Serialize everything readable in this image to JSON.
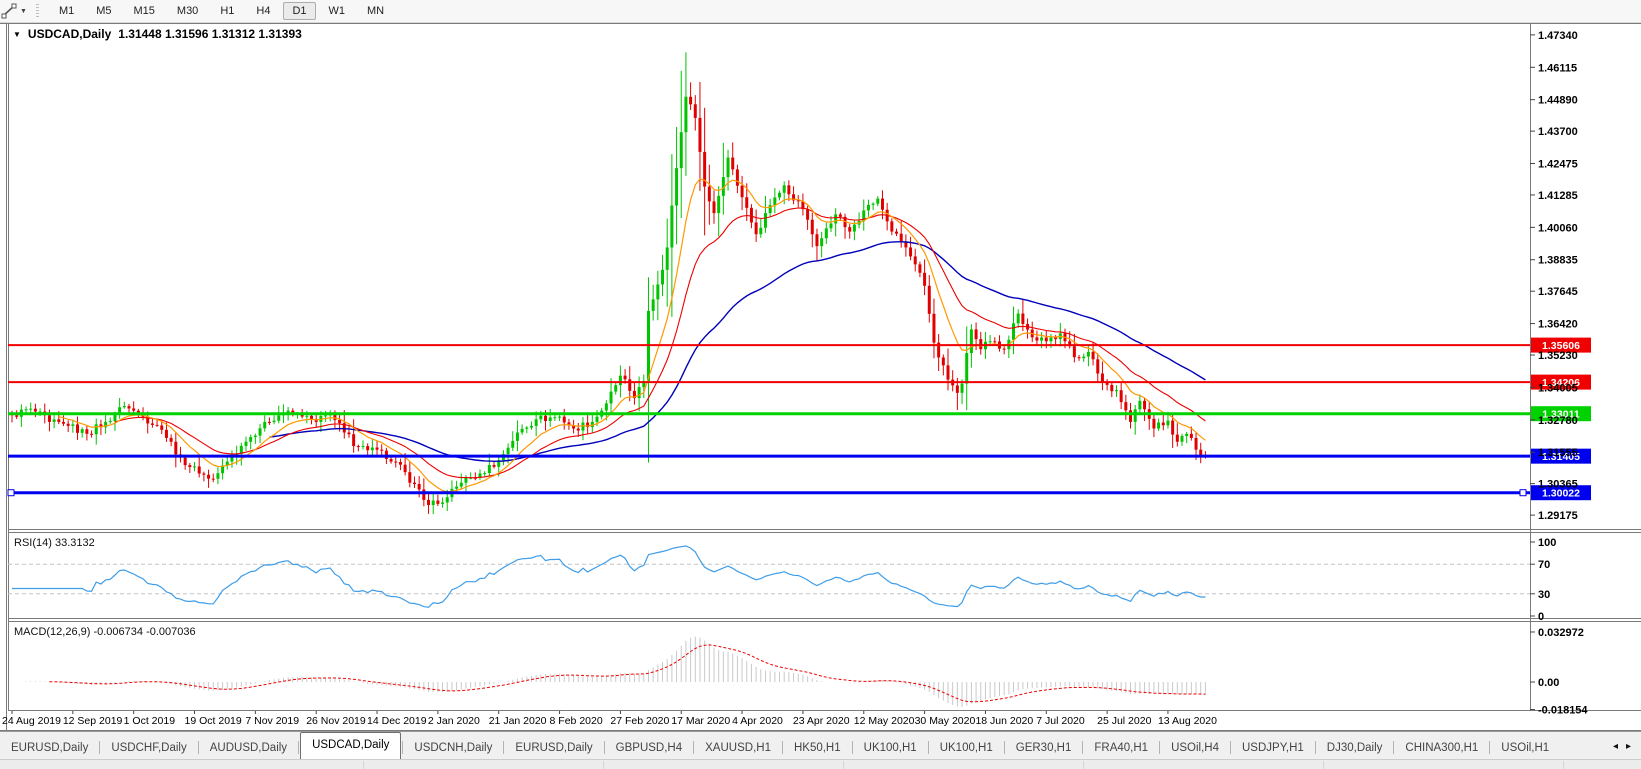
{
  "toolbar": {
    "drawing_tool_tooltip": "line-studies-tool",
    "timeframes": [
      {
        "label": "M1",
        "active": false
      },
      {
        "label": "M5",
        "active": false
      },
      {
        "label": "M15",
        "active": false
      },
      {
        "label": "M30",
        "active": false
      },
      {
        "label": "H1",
        "active": false
      },
      {
        "label": "H4",
        "active": false
      },
      {
        "label": "D1",
        "active": true
      },
      {
        "label": "W1",
        "active": false
      },
      {
        "label": "MN",
        "active": false
      }
    ]
  },
  "chart": {
    "title_symbol": "USDCAD,Daily",
    "title_ohlc": "1.31448 1.31596 1.31312 1.31393"
  },
  "chart_data": {
    "type": "candlestick",
    "symbol": "USDCAD",
    "period": "Daily",
    "bars": 256,
    "ohlc_current": {
      "open": 1.31448,
      "high": 1.31596,
      "low": 1.31312,
      "close": 1.31393
    },
    "price_axis_ticks": [
      "1.47340",
      "1.46115",
      "1.44890",
      "1.43700",
      "1.42475",
      "1.41285",
      "1.40060",
      "1.38835",
      "1.37645",
      "1.36420",
      "1.35230",
      "1.34005",
      "1.32780",
      "1.31555",
      "1.30365",
      "1.29175"
    ],
    "date_axis": [
      "24 Aug 2019",
      "12 Sep 2019",
      "1 Oct 2019",
      "19 Oct 2019",
      "7 Nov 2019",
      "26 Nov 2019",
      "14 Dec 2019",
      "2 Jan 2020",
      "21 Jan 2020",
      "8 Feb 2020",
      "27 Feb 2020",
      "17 Mar 2020",
      "4 Apr 2020",
      "23 Apr 2020",
      "12 May 2020",
      "30 May 2020",
      "18 Jun 2020",
      "7 Jul 2020",
      "25 Jul 2020",
      "13 Aug 2020"
    ],
    "keyframes": [
      [
        0,
        1.3295
      ],
      [
        4,
        1.332
      ],
      [
        8,
        1.327
      ],
      [
        12,
        1.3255
      ],
      [
        16,
        1.3225
      ],
      [
        20,
        1.327
      ],
      [
        24,
        1.333
      ],
      [
        28,
        1.329
      ],
      [
        32,
        1.324
      ],
      [
        36,
        1.3135
      ],
      [
        40,
        1.3075
      ],
      [
        43,
        1.3055
      ],
      [
        46,
        1.312
      ],
      [
        50,
        1.3195
      ],
      [
        54,
        1.327
      ],
      [
        58,
        1.3305
      ],
      [
        62,
        1.329
      ],
      [
        65,
        1.327
      ],
      [
        68,
        1.33
      ],
      [
        71,
        1.323
      ],
      [
        74,
        1.3175
      ],
      [
        78,
        1.3165
      ],
      [
        81,
        1.312
      ],
      [
        84,
        1.308
      ],
      [
        88,
        1.2975
      ],
      [
        91,
        1.296
      ],
      [
        93,
        1.2985
      ],
      [
        96,
        1.304
      ],
      [
        100,
        1.3075
      ],
      [
        104,
        1.3125
      ],
      [
        108,
        1.323
      ],
      [
        112,
        1.328
      ],
      [
        117,
        1.329
      ],
      [
        120,
        1.3245
      ],
      [
        124,
        1.327
      ],
      [
        127,
        1.334
      ],
      [
        130,
        1.3445
      ],
      [
        133,
        1.336
      ],
      [
        135,
        1.3425
      ],
      [
        136,
        1.369
      ],
      [
        138,
        1.379
      ],
      [
        140,
        1.393
      ],
      [
        142,
        1.423
      ],
      [
        144,
        1.45
      ],
      [
        146,
        1.442
      ],
      [
        148,
        1.416
      ],
      [
        150,
        1.406
      ],
      [
        153,
        1.427
      ],
      [
        156,
        1.412
      ],
      [
        159,
        1.398
      ],
      [
        162,
        1.409
      ],
      [
        165,
        1.4165
      ],
      [
        169,
        1.4075
      ],
      [
        172,
        1.3935
      ],
      [
        176,
        1.4055
      ],
      [
        179,
        1.399
      ],
      [
        182,
        1.407
      ],
      [
        185,
        1.4115
      ],
      [
        188,
        1.399
      ],
      [
        191,
        1.393
      ],
      [
        195,
        1.3785
      ],
      [
        197,
        1.357
      ],
      [
        200,
        1.343
      ],
      [
        202,
        1.338
      ],
      [
        203,
        1.3415
      ],
      [
        205,
        1.362
      ],
      [
        207,
        1.3545
      ],
      [
        209,
        1.3575
      ],
      [
        212,
        1.3545
      ],
      [
        215,
        1.368
      ],
      [
        218,
        1.359
      ],
      [
        221,
        1.3575
      ],
      [
        224,
        1.3605
      ],
      [
        227,
        1.3515
      ],
      [
        230,
        1.3535
      ],
      [
        233,
        1.342
      ],
      [
        236,
        1.339
      ],
      [
        239,
        1.327
      ],
      [
        241,
        1.335
      ],
      [
        244,
        1.3245
      ],
      [
        247,
        1.3275
      ],
      [
        249,
        1.3195
      ],
      [
        251,
        1.3225
      ],
      [
        253,
        1.3165
      ],
      [
        255,
        1.31393
      ]
    ],
    "wick_overrides": {
      "43": {
        "low": 1.3042
      },
      "91": {
        "low": 1.2952
      },
      "144": {
        "high": 1.4668
      },
      "202": {
        "low": 1.3315
      }
    },
    "moving_averages": [
      {
        "name": "ma-slow-blue",
        "period": 55,
        "color": "#0000bb",
        "width": 1.4
      },
      {
        "name": "ma-mid-red",
        "period": 22,
        "color": "#ee0000",
        "width": 1.1
      },
      {
        "name": "ma-fast-orange",
        "period": 10,
        "color": "#ff9800",
        "width": 1.2
      }
    ],
    "hlines": [
      {
        "price": 1.35606,
        "label": "1.35606",
        "color": "#f00000",
        "width": 2,
        "selected": false
      },
      {
        "price": 1.34206,
        "label": "1.34206",
        "color": "#f00000",
        "width": 2,
        "selected": false
      },
      {
        "price": 1.33011,
        "label": "1.33011",
        "color": "#00d200",
        "width": 3,
        "selected": false
      },
      {
        "price": 1.31405,
        "label": "1.31405",
        "color": "#0000f0",
        "width": 3,
        "selected": false
      },
      {
        "price": 1.30022,
        "label": "1.30022",
        "color": "#0000f0",
        "width": 3,
        "selected": true
      }
    ],
    "rsi": {
      "label": "RSI(14) 33.3132",
      "period": 14,
      "current": 33.3132,
      "levels": [
        70,
        30
      ],
      "ticks": [
        [
          "100",
          100
        ],
        [
          "70",
          70
        ],
        [
          "30",
          30
        ],
        [
          "0",
          0
        ]
      ],
      "color": "#3e9de8"
    },
    "macd": {
      "label": "MACD(12,26,9) -0.006734 -0.007036",
      "fast": 12,
      "slow": 26,
      "signal": 9,
      "current_main": -0.006734,
      "current_signal": -0.007036,
      "ticks": [
        [
          "0.032972",
          0.032972
        ],
        [
          "0.00",
          0
        ],
        [
          "-0.018154",
          -0.018154
        ]
      ],
      "hist_color": "#c9c9c9",
      "signal_color": "#ee0000"
    },
    "colors": {
      "bull": "#00c400",
      "bear": "#e10000",
      "axis_text": "#000000"
    }
  },
  "tabs": [
    {
      "label": "EURUSD,Daily",
      "active": false
    },
    {
      "label": "USDCHF,Daily",
      "active": false
    },
    {
      "label": "AUDUSD,Daily",
      "active": false
    },
    {
      "label": "USDCAD,Daily",
      "active": true
    },
    {
      "label": "USDCNH,Daily",
      "active": false
    },
    {
      "label": "EURUSD,Daily",
      "active": false
    },
    {
      "label": "GBPUSD,H4",
      "active": false
    },
    {
      "label": "XAUUSD,H1",
      "active": false
    },
    {
      "label": "HK50,H1",
      "active": false
    },
    {
      "label": "UK100,H1",
      "active": false
    },
    {
      "label": "UK100,H1",
      "active": false
    },
    {
      "label": "GER30,H1",
      "active": false
    },
    {
      "label": "FRA40,H1",
      "active": false
    },
    {
      "label": "USOil,H4",
      "active": false
    },
    {
      "label": "USDJPY,H1",
      "active": false
    },
    {
      "label": "DJ30,Daily",
      "active": false
    },
    {
      "label": "CHINA300,H1",
      "active": false
    },
    {
      "label": "USOil,H1",
      "active": false
    }
  ],
  "tab_scroll": {
    "left": "◂",
    "right": "▸"
  },
  "title_caret": "▼"
}
